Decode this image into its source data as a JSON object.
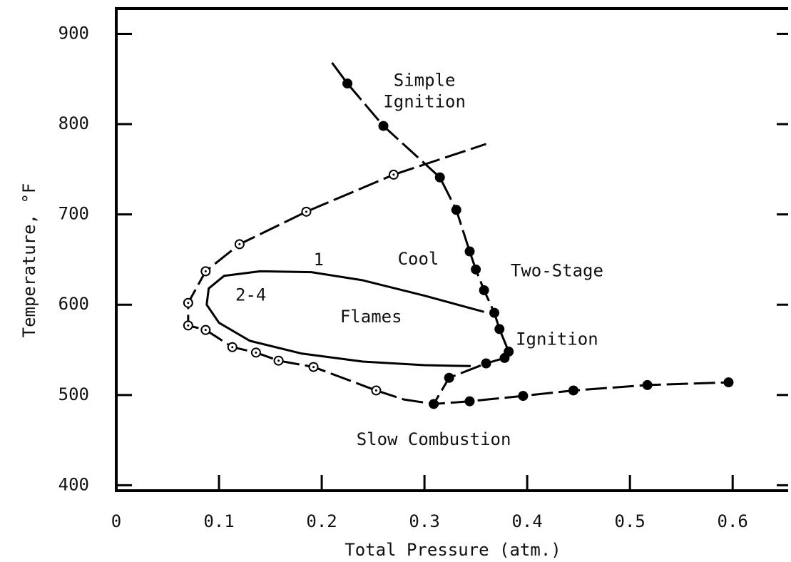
{
  "chart_data": {
    "type": "scatter",
    "xlabel": "Total Pressure (atm.)",
    "ylabel": "Temperature, °F",
    "xlim": [
      0,
      0.654
    ],
    "ylim": [
      394,
      928
    ],
    "xticks": [
      0,
      0.1,
      0.2,
      0.3,
      0.4,
      0.5,
      0.6
    ],
    "yticks": [
      400,
      500,
      600,
      700,
      800,
      900
    ],
    "color": "#000000",
    "series": [
      {
        "marker": "filled",
        "dash": true,
        "x": [
          0.225,
          0.26,
          0.315,
          0.331,
          0.344,
          0.35,
          0.358,
          0.368,
          0.373,
          0.382,
          0.378,
          0.36,
          0.324,
          0.309,
          0.344,
          0.396,
          0.445,
          0.517,
          0.596
        ],
        "values": [
          845,
          798,
          741,
          705,
          659,
          639,
          616,
          591,
          573,
          548,
          541,
          535,
          519,
          490,
          493,
          499,
          505,
          511,
          514
        ]
      },
      {
        "marker": "open",
        "dash": true,
        "x": [
          0.253,
          0.192,
          0.158,
          0.136,
          0.113,
          0.087,
          0.07,
          0.07,
          0.087,
          0.12,
          0.185,
          0.27
        ],
        "values": [
          505,
          531,
          538,
          547,
          553,
          572,
          577,
          602,
          637,
          667,
          703,
          744
        ]
      }
    ],
    "curves": [
      {
        "dash": true,
        "x": [
          0.21,
          0.225
        ],
        "y": [
          868,
          845
        ]
      },
      {
        "dash": true,
        "x": [
          0.27,
          0.36
        ],
        "y": [
          744,
          778
        ]
      },
      {
        "dash": true,
        "x": [
          0.253,
          0.28,
          0.309
        ],
        "y": [
          505,
          495,
          490
        ]
      },
      {
        "dash": false,
        "x": [
          0.358,
          0.3,
          0.24,
          0.19,
          0.14,
          0.105,
          0.09,
          0.088,
          0.1,
          0.13,
          0.18,
          0.24,
          0.3,
          0.345
        ],
        "y": [
          592,
          610,
          627,
          636,
          637,
          632,
          618,
          600,
          580,
          560,
          546,
          537,
          533,
          532
        ]
      }
    ],
    "annotations": [
      {
        "text": "Simple",
        "x": 0.3,
        "y": 848
      },
      {
        "text": "Ignition",
        "x": 0.3,
        "y": 824
      },
      {
        "text": "1",
        "x": 0.197,
        "y": 649
      },
      {
        "text": "Cool",
        "x": 0.294,
        "y": 650
      },
      {
        "text": "Two-Stage",
        "x": 0.429,
        "y": 637
      },
      {
        "text": "2-4",
        "x": 0.131,
        "y": 610
      },
      {
        "text": "Flames",
        "x": 0.248,
        "y": 586
      },
      {
        "text": "Ignition",
        "x": 0.429,
        "y": 561
      },
      {
        "text": "Slow Combustion",
        "x": 0.309,
        "y": 450
      }
    ]
  }
}
